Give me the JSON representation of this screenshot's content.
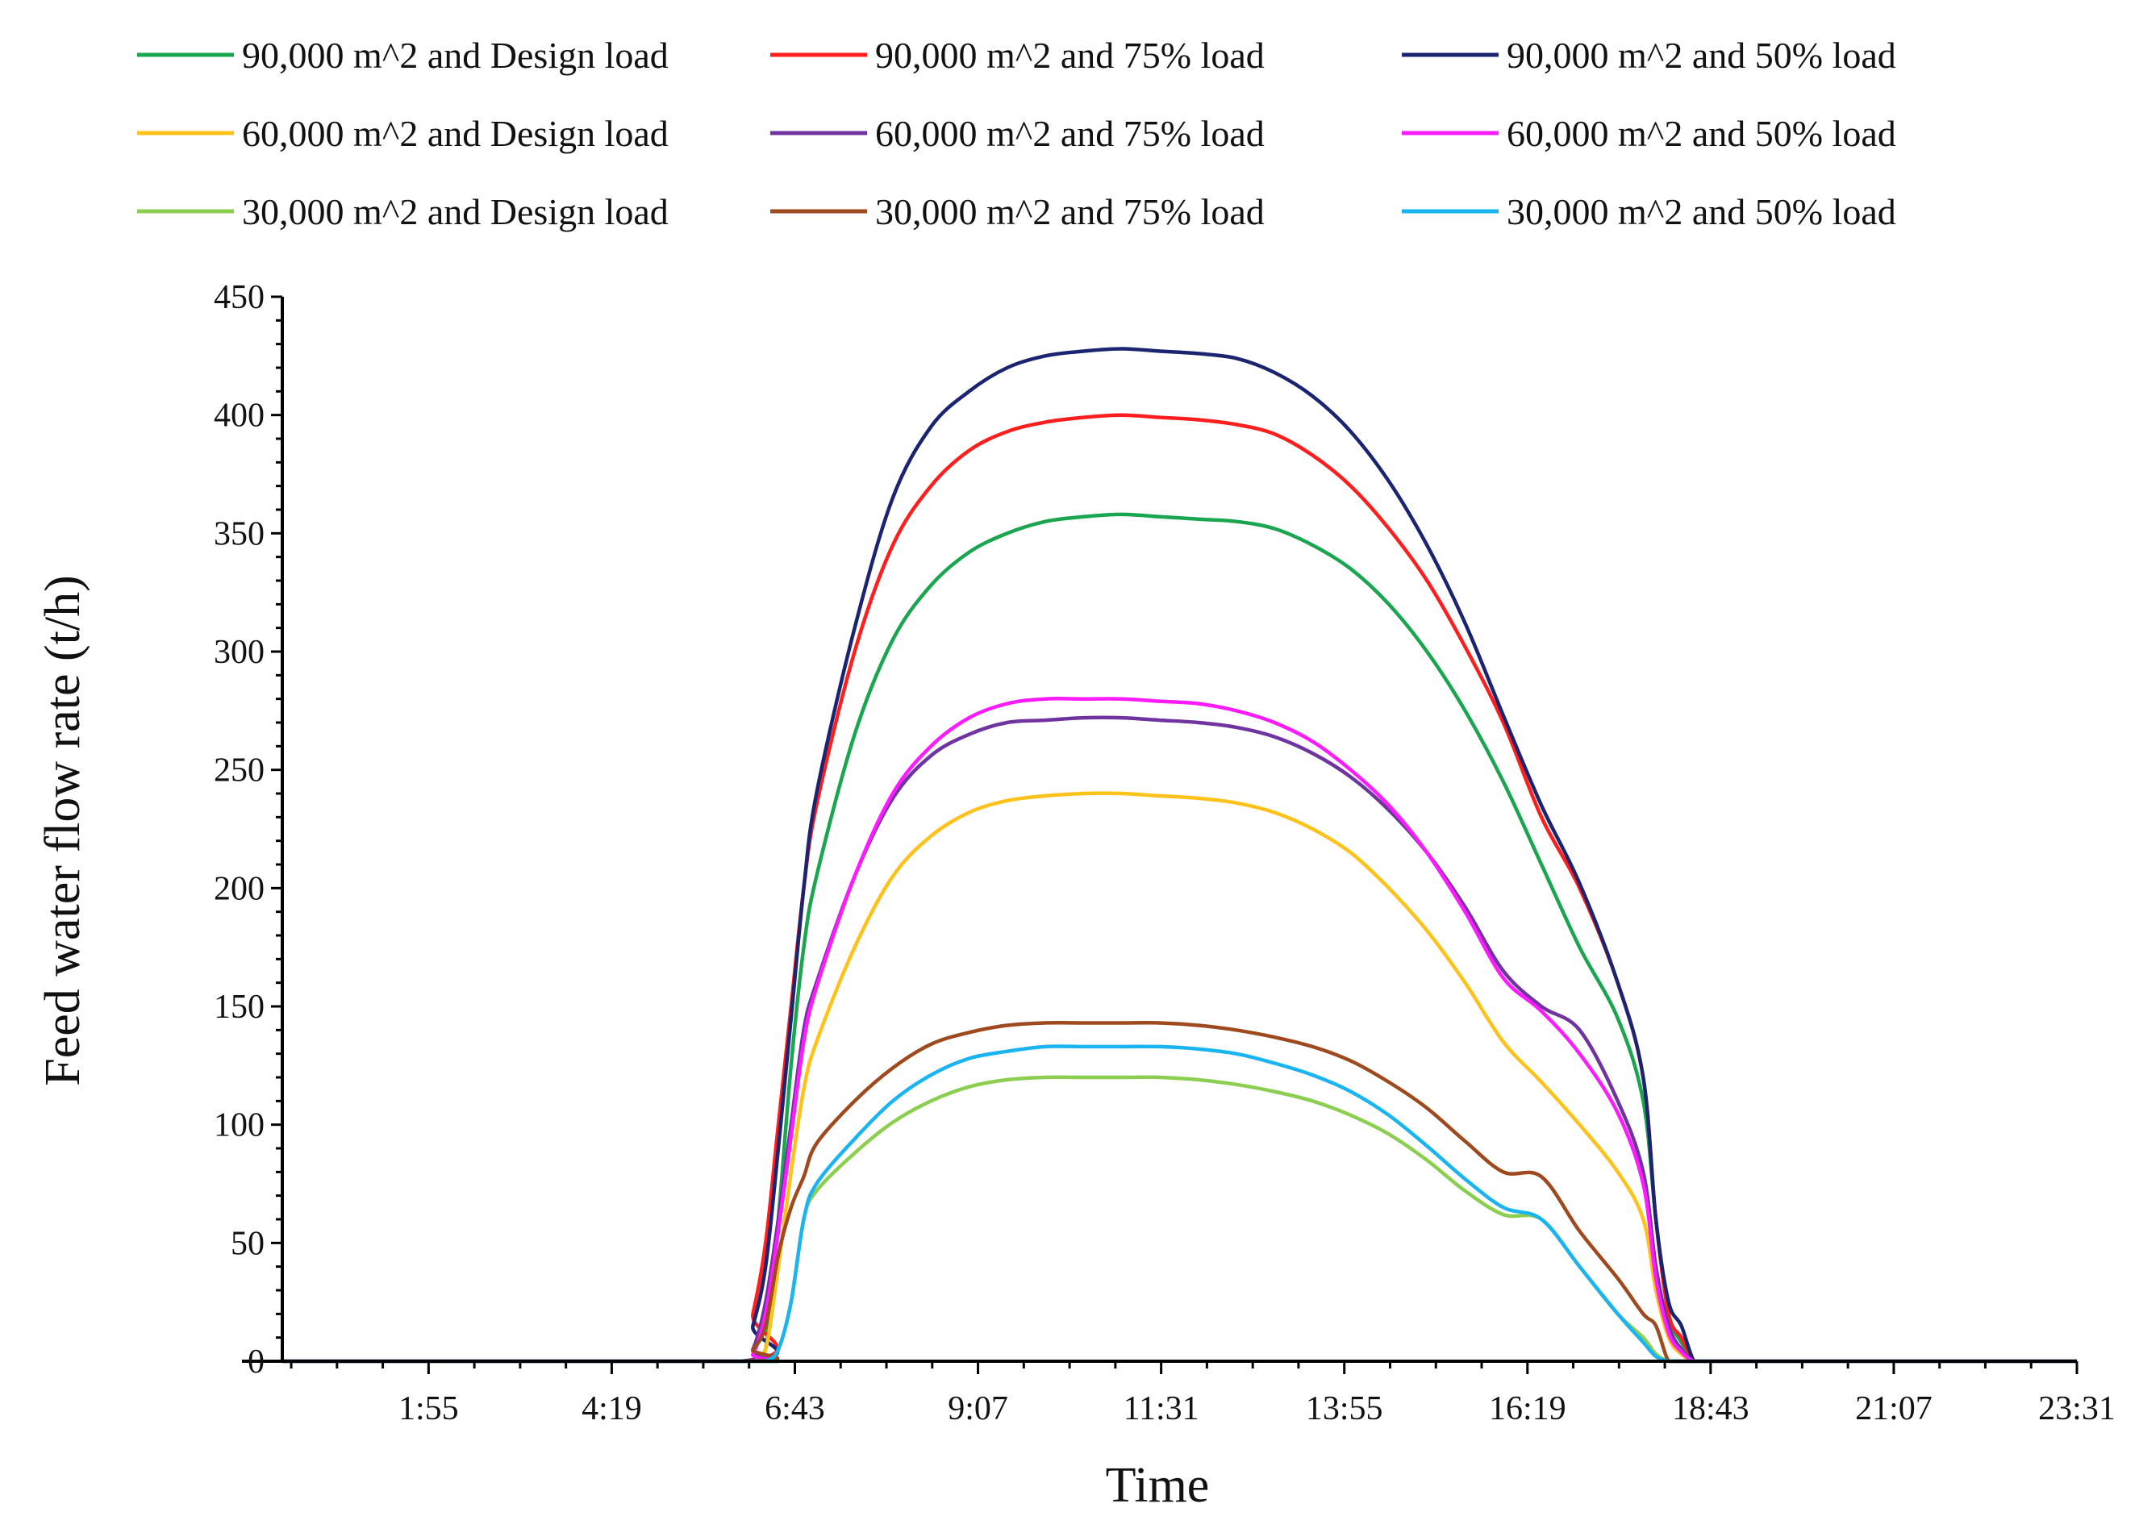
{
  "chart_data": {
    "type": "line",
    "xlabel": "Time",
    "ylabel": "Feed water flow rate (t/h)",
    "ylim": [
      0,
      450
    ],
    "yticks": [
      "0",
      "50",
      "100",
      "150",
      "200",
      "250",
      "300",
      "350",
      "400",
      "450"
    ],
    "xlim": [
      "0:00",
      "23:31"
    ],
    "xticks": [
      "1:55",
      "4:19",
      "6:43",
      "9:07",
      "11:31",
      "13:55",
      "16:19",
      "18:43",
      "21:07",
      "23:31"
    ],
    "grid": false,
    "legend_position": "top",
    "x": [
      "0:00",
      "6:00",
      "6:10",
      "6:20",
      "6:30",
      "6:40",
      "6:50",
      "7:00",
      "7:30",
      "8:00",
      "8:30",
      "9:00",
      "9:30",
      "10:00",
      "10:30",
      "11:00",
      "11:30",
      "12:00",
      "12:30",
      "13:00",
      "13:30",
      "14:00",
      "14:30",
      "15:00",
      "15:30",
      "16:00",
      "16:30",
      "17:00",
      "17:30",
      "17:50",
      "18:00",
      "18:10",
      "18:20",
      "18:30",
      "18:40",
      "23:31"
    ],
    "series": [
      {
        "name": "90,000 m^2 and Design load",
        "color": "#1aa650",
        "values": [
          0,
          0,
          0,
          5,
          60,
          125,
          175,
          205,
          265,
          305,
          328,
          342,
          350,
          355,
          357,
          358,
          357,
          356,
          355,
          352,
          345,
          335,
          320,
          300,
          275,
          245,
          210,
          175,
          145,
          110,
          60,
          20,
          8,
          0,
          0,
          0
        ]
      },
      {
        "name": "90,000 m^2 and 75% load",
        "color": "#ff1e1e",
        "values": [
          0,
          0,
          20,
          50,
          100,
          150,
          200,
          235,
          300,
          345,
          370,
          385,
          393,
          397,
          399,
          400,
          399,
          398,
          396,
          392,
          383,
          370,
          352,
          330,
          302,
          270,
          230,
          200,
          160,
          120,
          60,
          20,
          10,
          0,
          0,
          0
        ]
      },
      {
        "name": "90,000 m^2 and 50% load",
        "color": "#1a2470",
        "values": [
          0,
          0,
          15,
          40,
          90,
          145,
          200,
          240,
          310,
          365,
          395,
          410,
          420,
          425,
          427,
          428,
          427,
          426,
          424,
          418,
          408,
          393,
          372,
          345,
          312,
          273,
          235,
          202,
          160,
          120,
          60,
          25,
          15,
          0,
          0,
          0
        ]
      },
      {
        "name": "60,000 m^2 and Design load",
        "color": "#ffc21a",
        "values": [
          0,
          0,
          0,
          5,
          40,
          80,
          115,
          135,
          175,
          205,
          222,
          232,
          237,
          239,
          240,
          240,
          239,
          238,
          236,
          232,
          225,
          215,
          200,
          182,
          160,
          135,
          118,
          100,
          80,
          60,
          30,
          10,
          3,
          0,
          0,
          0
        ]
      },
      {
        "name": "60,000 m^2 and 75% load",
        "color": "#7034a0",
        "values": [
          0,
          0,
          5,
          25,
          60,
          100,
          140,
          160,
          205,
          238,
          256,
          265,
          270,
          271,
          272,
          272,
          271,
          270,
          268,
          264,
          257,
          247,
          233,
          215,
          192,
          165,
          150,
          140,
          110,
          80,
          40,
          15,
          5,
          0,
          0,
          0
        ]
      },
      {
        "name": "60,000 m^2 and 50% load",
        "color": "#ff1aff",
        "values": [
          0,
          0,
          3,
          20,
          55,
          95,
          135,
          158,
          205,
          240,
          260,
          272,
          278,
          280,
          280,
          280,
          279,
          278,
          275,
          270,
          262,
          250,
          235,
          215,
          190,
          162,
          148,
          130,
          105,
          75,
          35,
          12,
          4,
          0,
          0,
          0
        ]
      },
      {
        "name": "30,000 m^2 and Design load",
        "color": "#8ccf50",
        "values": [
          0,
          0,
          0,
          0,
          5,
          25,
          60,
          72,
          88,
          101,
          110,
          116,
          119,
          120,
          120,
          120,
          120,
          119,
          117,
          114,
          110,
          104,
          96,
          85,
          72,
          62,
          60,
          40,
          20,
          10,
          3,
          0,
          0,
          0,
          0,
          0
        ]
      },
      {
        "name": "30,000 m^2 and 75% load",
        "color": "#9e4a1e",
        "values": [
          0,
          0,
          5,
          15,
          45,
          65,
          78,
          92,
          110,
          124,
          134,
          139,
          142,
          143,
          143,
          143,
          143,
          142,
          140,
          137,
          133,
          127,
          118,
          107,
          93,
          80,
          78,
          55,
          35,
          20,
          15,
          0,
          0,
          0,
          0,
          0
        ]
      },
      {
        "name": "30,000 m^2 and 50% load",
        "color": "#1ab4f0",
        "values": [
          0,
          0,
          0,
          0,
          5,
          25,
          60,
          75,
          94,
          110,
          121,
          128,
          131,
          133,
          133,
          133,
          133,
          132,
          130,
          126,
          121,
          114,
          104,
          91,
          77,
          65,
          60,
          40,
          20,
          8,
          2,
          0,
          0,
          0,
          0,
          0
        ]
      }
    ]
  }
}
